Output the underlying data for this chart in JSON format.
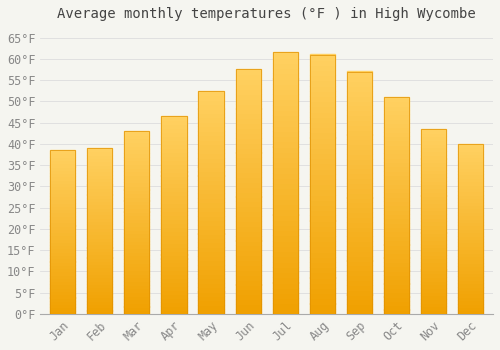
{
  "title": "Average monthly temperatures (°F ) in High Wycombe",
  "months": [
    "Jan",
    "Feb",
    "Mar",
    "Apr",
    "May",
    "Jun",
    "Jul",
    "Aug",
    "Sep",
    "Oct",
    "Nov",
    "Dec"
  ],
  "values": [
    38.5,
    39.0,
    43.0,
    46.5,
    52.5,
    57.5,
    61.5,
    61.0,
    57.0,
    51.0,
    43.5,
    40.0
  ],
  "bar_color_top": "#FFD060",
  "bar_color_bottom": "#F0A000",
  "background_color": "#F5F5F0",
  "plot_bg_color": "#F5F5F0",
  "grid_color": "#DDDDDD",
  "text_color": "#888888",
  "axis_color": "#AAAAAA",
  "ylim": [
    0,
    67
  ],
  "yticks": [
    0,
    5,
    10,
    15,
    20,
    25,
    30,
    35,
    40,
    45,
    50,
    55,
    60,
    65
  ],
  "title_fontsize": 10,
  "tick_fontsize": 8.5
}
